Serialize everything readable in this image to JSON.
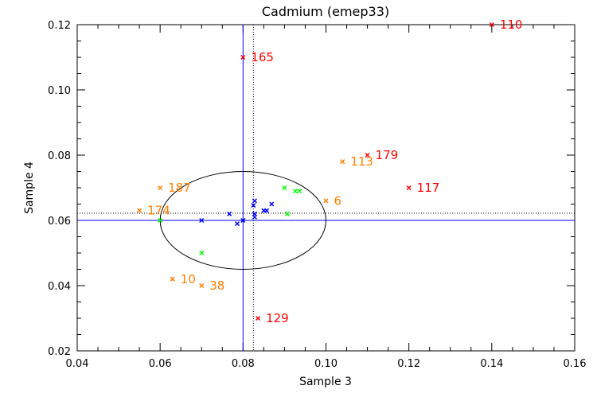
{
  "chart_data": {
    "type": "scatter",
    "title": "Cadmium (emep33)",
    "xlabel": "Sample 3",
    "ylabel": "Sample 4",
    "xlim": [
      0.04,
      0.16
    ],
    "ylim": [
      0.02,
      0.12
    ],
    "xticks": [
      "0.04",
      "0.06",
      "0.08",
      "0.10",
      "0.12",
      "0.14",
      "0.16"
    ],
    "yticks": [
      "0.02",
      "0.04",
      "0.06",
      "0.08",
      "0.10",
      "0.12"
    ],
    "xtick_values": [
      0.04,
      0.06,
      0.08,
      0.1,
      0.12,
      0.14,
      0.16
    ],
    "ytick_values": [
      0.02,
      0.04,
      0.06,
      0.08,
      0.1,
      0.12
    ],
    "minor_step": 0.005,
    "grid": false,
    "reference_lines": {
      "solid_color": "#0000ff",
      "solid_x": 0.08,
      "solid_y": 0.06,
      "dotted_color": "#000000",
      "dotted_x": 0.0825,
      "dotted_y": 0.0622
    },
    "ellipse": {
      "cx": 0.08,
      "cy": 0.06,
      "rx": 0.02,
      "ry": 0.015,
      "color": "#000000"
    },
    "series": [
      {
        "name": "red",
        "color": "#ff0000",
        "points": [
          {
            "x": 0.14,
            "y": 0.12,
            "label": "110"
          },
          {
            "x": 0.08,
            "y": 0.11,
            "label": "165"
          },
          {
            "x": 0.11,
            "y": 0.08,
            "label": "179"
          },
          {
            "x": 0.12,
            "y": 0.07,
            "label": "117"
          },
          {
            "x": 0.0836,
            "y": 0.03,
            "label": "129"
          }
        ]
      },
      {
        "name": "orange",
        "color": "#ff8000",
        "points": [
          {
            "x": 0.104,
            "y": 0.078,
            "label": "113"
          },
          {
            "x": 0.06,
            "y": 0.07,
            "label": "187"
          },
          {
            "x": 0.1,
            "y": 0.066,
            "label": "6"
          },
          {
            "x": 0.055,
            "y": 0.063,
            "label": "174"
          },
          {
            "x": 0.063,
            "y": 0.042,
            "label": "10"
          },
          {
            "x": 0.07,
            "y": 0.04,
            "label": "38"
          }
        ]
      },
      {
        "name": "green",
        "color": "#00ff00",
        "points": [
          {
            "x": 0.06,
            "y": 0.06
          },
          {
            "x": 0.07,
            "y": 0.05
          },
          {
            "x": 0.09,
            "y": 0.07
          },
          {
            "x": 0.0926,
            "y": 0.069
          },
          {
            "x": 0.0936,
            "y": 0.069
          },
          {
            "x": 0.0907,
            "y": 0.062
          }
        ]
      },
      {
        "name": "blue",
        "color": "#0000ff",
        "points": [
          {
            "x": 0.07,
            "y": 0.06
          },
          {
            "x": 0.0767,
            "y": 0.062
          },
          {
            "x": 0.0786,
            "y": 0.059
          },
          {
            "x": 0.08,
            "y": 0.06
          },
          {
            "x": 0.0828,
            "y": 0.066
          },
          {
            "x": 0.0825,
            "y": 0.0646
          },
          {
            "x": 0.0828,
            "y": 0.062
          },
          {
            "x": 0.0828,
            "y": 0.061
          },
          {
            "x": 0.085,
            "y": 0.063
          },
          {
            "x": 0.0857,
            "y": 0.063
          },
          {
            "x": 0.0869,
            "y": 0.065
          }
        ]
      }
    ]
  }
}
